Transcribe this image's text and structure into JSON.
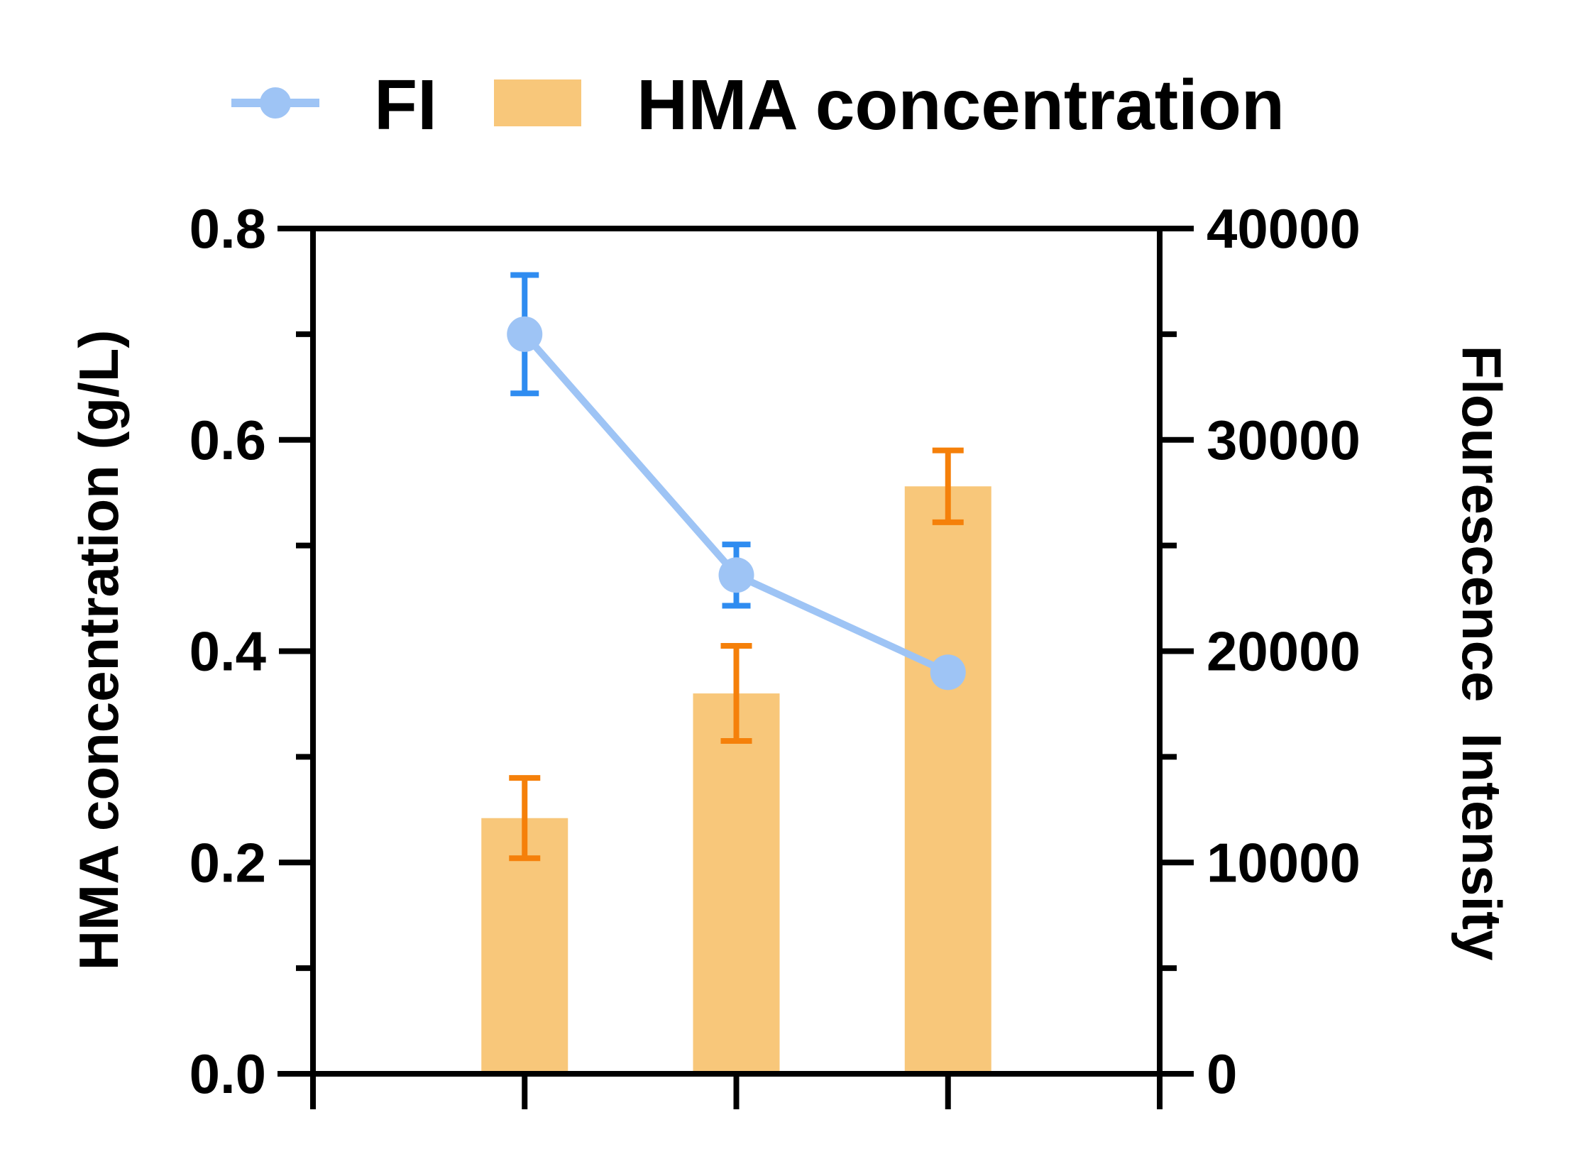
{
  "chart_data": {
    "type": "bar",
    "categories": [
      "",
      "",
      ""
    ],
    "legend": {
      "position": "top",
      "entries": [
        {
          "label": "FI",
          "kind": "line-marker",
          "series": "FI"
        },
        {
          "label": "HMA concentration",
          "kind": "bar",
          "series": "HMA concentration"
        }
      ]
    },
    "series": [
      {
        "name": "HMA concentration",
        "type": "bar",
        "axis": "left",
        "values": [
          0.242,
          0.36,
          0.556
        ],
        "error": [
          0.038,
          0.045,
          0.034
        ]
      },
      {
        "name": "FI",
        "type": "line",
        "axis": "right",
        "values": [
          35000,
          23600,
          19000
        ],
        "error": [
          2800,
          1450,
          0
        ]
      }
    ],
    "left_axis": {
      "label": "HMA concentration (g/L)",
      "ylim": [
        0,
        0.8
      ],
      "ticks": [
        "0.0",
        "0.2",
        "0.4",
        "0.6",
        "0.8"
      ],
      "tick_values": [
        0,
        0.2,
        0.4,
        0.6,
        0.8
      ],
      "minor_ticks": [
        0.1,
        0.3,
        0.5,
        0.7
      ]
    },
    "right_axis": {
      "label": "Flourescence  Intensity",
      "ylim": [
        0,
        40000
      ],
      "ticks": [
        "0",
        "10000",
        "20000",
        "30000",
        "40000"
      ],
      "tick_values": [
        0,
        10000,
        20000,
        30000,
        40000
      ],
      "minor_ticks": [
        5000,
        15000,
        25000,
        35000
      ]
    },
    "grid": false,
    "colors": {
      "bar_fill": "#f8c77a",
      "bar_error": "#f5800a",
      "line": "#9ec4f5",
      "line_error": "#2f8cf0",
      "axis": "#000000"
    }
  }
}
